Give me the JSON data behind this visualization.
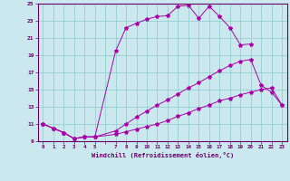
{
  "bg_color": "#cce8ef",
  "line_color": "#aa00aa",
  "grid_color": "#88cccc",
  "xlabel": "Windchill (Refroidissement éolien,°C)",
  "xmin": 0,
  "xmax": 23,
  "ymin": 9,
  "ymax": 25,
  "yticks": [
    9,
    11,
    13,
    15,
    17,
    19,
    21,
    23,
    25
  ],
  "line1_x": [
    0,
    1,
    2,
    3,
    4,
    5,
    7,
    8,
    9,
    10,
    11,
    12,
    13,
    14,
    15,
    16,
    17,
    18,
    19,
    20
  ],
  "line1_y": [
    11.0,
    10.5,
    10.0,
    9.3,
    9.5,
    9.5,
    19.5,
    22.2,
    22.7,
    23.2,
    23.5,
    23.6,
    24.7,
    24.8,
    23.3,
    24.7,
    23.5,
    22.2,
    20.2,
    20.3
  ],
  "line2_x": [
    0,
    1,
    2,
    3,
    4,
    5,
    7,
    8,
    9,
    10,
    11,
    12,
    13,
    14,
    15,
    16,
    17,
    18,
    19,
    20,
    21,
    22,
    23
  ],
  "line2_y": [
    11.0,
    10.5,
    10.0,
    9.3,
    9.5,
    9.5,
    10.2,
    11.0,
    11.8,
    12.5,
    13.2,
    13.8,
    14.5,
    15.2,
    15.8,
    16.5,
    17.2,
    17.8,
    18.3,
    18.5,
    15.5,
    14.7,
    13.2
  ],
  "line3_x": [
    0,
    1,
    2,
    3,
    4,
    5,
    7,
    8,
    9,
    10,
    11,
    12,
    13,
    14,
    15,
    16,
    17,
    18,
    19,
    20,
    21,
    22,
    23
  ],
  "line3_y": [
    11.0,
    10.5,
    10.0,
    9.3,
    9.5,
    9.5,
    9.8,
    10.1,
    10.4,
    10.7,
    11.0,
    11.4,
    11.9,
    12.3,
    12.8,
    13.2,
    13.7,
    14.0,
    14.4,
    14.7,
    15.0,
    15.2,
    13.2
  ]
}
